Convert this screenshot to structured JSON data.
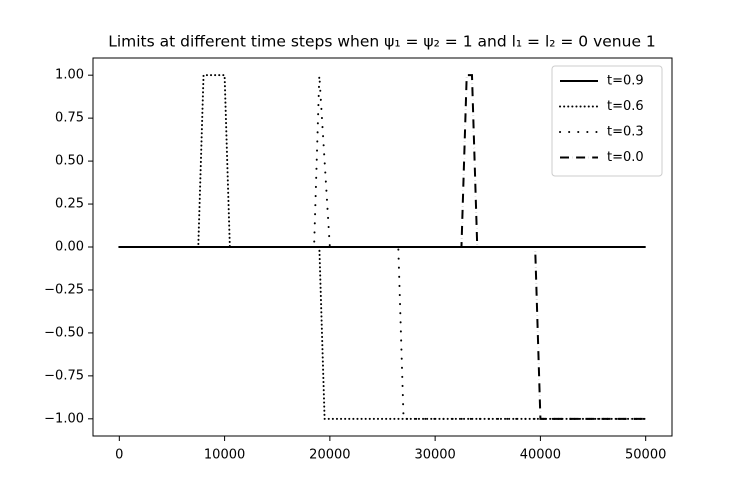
{
  "chart_data": {
    "type": "line",
    "title": "Limits at different time steps when ψ₁ = ψ₂ = 1 and l₁ = l₂ = 0 venue 1",
    "xlim": [
      -2500,
      52500
    ],
    "ylim": [
      -1.1,
      1.1
    ],
    "xticks": [
      0,
      10000,
      20000,
      30000,
      40000,
      50000
    ],
    "yticks": [
      {
        "value": -1,
        "label": "−1.00"
      },
      {
        "value": -0.75,
        "label": "−0.75"
      },
      {
        "value": -0.5,
        "label": "−0.50"
      },
      {
        "value": -0.25,
        "label": "−0.25"
      },
      {
        "value": 0,
        "label": "0.00"
      },
      {
        "value": 0.25,
        "label": "0.25"
      },
      {
        "value": 0.5,
        "label": "0.50"
      },
      {
        "value": 0.75,
        "label": "0.75"
      },
      {
        "value": 1,
        "label": "1.00"
      }
    ],
    "grid": false,
    "legend": "upper right",
    "series": [
      {
        "name": "t=0.9",
        "color": "#000000",
        "style": "solid",
        "x": [
          0,
          50000
        ],
        "values": [
          0,
          0
        ]
      },
      {
        "name": "t=0.6",
        "color": "#000000",
        "style": "dotted",
        "x": [
          0,
          7500,
          8000,
          10000,
          10500,
          19000,
          19500,
          50000
        ],
        "values": [
          0,
          0,
          1,
          1,
          0,
          0,
          -1,
          -1
        ]
      },
      {
        "name": "t=0.3",
        "color": "#000000",
        "style": "loosely dotted",
        "x": [
          0,
          18500,
          19000,
          20000,
          26500,
          27000,
          50000
        ],
        "values": [
          0,
          0,
          1,
          0,
          0,
          -1,
          -1
        ]
      },
      {
        "name": "t=0.0",
        "color": "#000000",
        "style": "dashdot",
        "x": [
          0,
          32500,
          33000,
          33500,
          34000,
          39500,
          40000,
          50000
        ],
        "values": [
          0,
          0,
          1,
          1,
          0,
          0,
          -1,
          -1
        ]
      }
    ]
  }
}
